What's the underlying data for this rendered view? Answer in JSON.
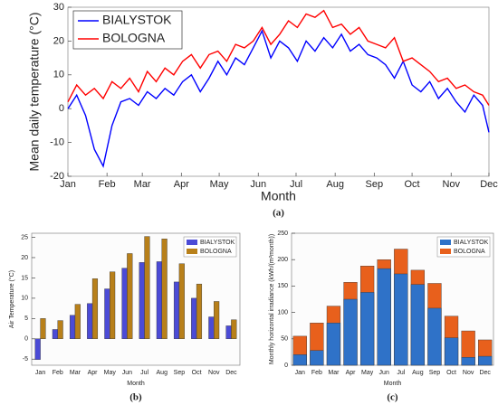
{
  "chart_data": [
    {
      "type": "line",
      "caption": "(a)",
      "ylabel": "Mean daily temperature (°C)",
      "xlabel": "Month",
      "legend": "upper-left",
      "grid": false,
      "x": [
        0,
        7,
        14,
        21,
        28,
        35,
        42,
        49,
        56,
        63,
        70,
        77,
        84,
        91,
        98,
        105,
        112,
        119,
        126,
        133,
        140,
        147,
        154,
        161,
        168,
        175,
        182,
        189,
        196,
        203,
        210,
        217,
        224,
        231,
        238,
        245,
        252,
        259,
        266,
        273,
        280,
        287,
        294,
        301,
        308,
        315,
        322,
        329,
        334
      ],
      "xlim": [
        0,
        334
      ],
      "xticks": [
        {
          "value": 0,
          "label": "Jan"
        },
        {
          "value": 31,
          "label": "Feb"
        },
        {
          "value": 59,
          "label": "Mar"
        },
        {
          "value": 90,
          "label": "Apr"
        },
        {
          "value": 120,
          "label": "May"
        },
        {
          "value": 151,
          "label": "Jun"
        },
        {
          "value": 181,
          "label": "Jul"
        },
        {
          "value": 212,
          "label": "Aug"
        },
        {
          "value": 243,
          "label": "Sep"
        },
        {
          "value": 273,
          "label": "Oct"
        },
        {
          "value": 304,
          "label": "Nov"
        },
        {
          "value": 334,
          "label": "Dec"
        }
      ],
      "ylim": [
        -20,
        30
      ],
      "yticks": [
        -20,
        -10,
        0,
        10,
        20,
        30
      ],
      "series": [
        {
          "name": "BIALYSTOK",
          "color": "#0000ff",
          "values": [
            0,
            4,
            -2,
            -12,
            -17,
            -5,
            2,
            3,
            1,
            5,
            3,
            6,
            4,
            8,
            10,
            5,
            9,
            14,
            10,
            15,
            13,
            18,
            23,
            15,
            20,
            18,
            14,
            20,
            17,
            21,
            18,
            22,
            17,
            19,
            16,
            15,
            13,
            9,
            14,
            7,
            5,
            8,
            3,
            6,
            2,
            -1,
            4,
            1,
            -7
          ]
        },
        {
          "name": "BOLOGNA",
          "color": "#ff0000",
          "values": [
            2,
            7,
            4,
            6,
            3,
            8,
            6,
            9,
            5,
            11,
            8,
            12,
            10,
            14,
            16,
            12,
            16,
            17,
            14,
            19,
            18,
            20,
            24,
            19,
            22,
            26,
            24,
            28,
            27,
            29,
            24,
            25,
            22,
            24,
            20,
            19,
            18,
            21,
            14,
            15,
            13,
            11,
            8,
            9,
            6,
            7,
            5,
            4,
            1
          ]
        }
      ]
    },
    {
      "type": "bar",
      "caption": "(b)",
      "ylabel": "Air Temperature (°C)",
      "xlabel": "Month",
      "legend": "upper-right",
      "grid": false,
      "categories": [
        "Jan",
        "Feb",
        "Mar",
        "Apr",
        "May",
        "Jun",
        "Jul",
        "Aug",
        "Sep",
        "Oct",
        "Nov",
        "Dec"
      ],
      "ylim": [
        -6.5,
        26
      ],
      "yticks": [
        -5,
        0,
        5,
        10,
        15,
        20,
        25
      ],
      "series": [
        {
          "name": "BIALYSTOK",
          "color": "#4b4bd6",
          "values": [
            -5.1,
            2.3,
            5.8,
            8.7,
            12.3,
            17.4,
            18.8,
            19,
            14,
            10,
            5.4,
            3.2
          ]
        },
        {
          "name": "BOLOGNA",
          "color": "#b8801a",
          "values": [
            5,
            4.5,
            8.5,
            14.8,
            16.5,
            21,
            25.2,
            24.6,
            18.5,
            13.5,
            9.2,
            4.7
          ]
        }
      ]
    },
    {
      "type": "bar",
      "overlay": true,
      "caption": "(c)",
      "ylabel": "Monthly horizontal irradiance (kWh/(m²month))",
      "xlabel": "Month",
      "legend": "upper-right",
      "grid": false,
      "categories": [
        "Jan",
        "Feb",
        "Mar",
        "Apr",
        "May",
        "Jun",
        "Jul",
        "Aug",
        "Sep",
        "Oct",
        "Nov",
        "Dec"
      ],
      "ylim": [
        0,
        250
      ],
      "yticks": [
        0,
        50,
        100,
        150,
        200,
        250
      ],
      "series": [
        {
          "name": "BIALYSTOK",
          "color": "#2f72c8",
          "values": [
            20,
            28,
            80,
            125,
            138,
            183,
            173,
            153,
            108,
            52,
            15,
            17
          ]
        },
        {
          "name": "BOLOGNA",
          "color": "#e8601c",
          "values": [
            55,
            80,
            112,
            157,
            188,
            200,
            220,
            180,
            155,
            93,
            65,
            48
          ]
        }
      ]
    }
  ]
}
